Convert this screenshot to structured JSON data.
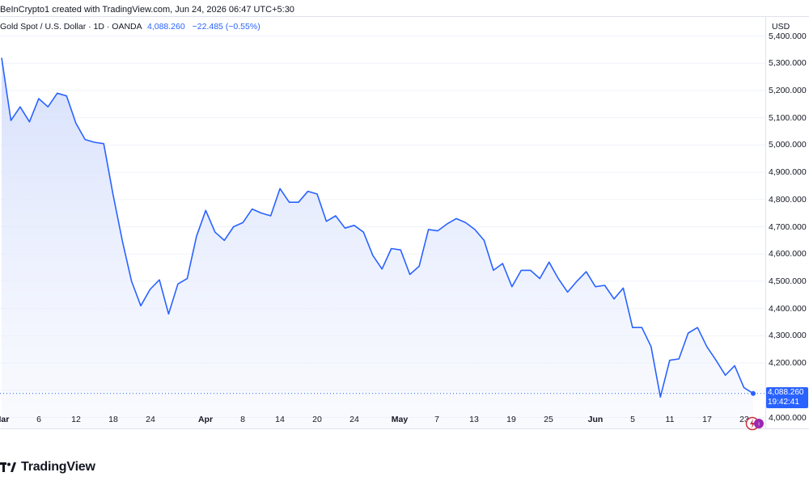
{
  "caption": "BeInCrypto1 created with TradingView.com, Jun 24, 2026 06:47 UTC+5:30",
  "legend": {
    "symbol": "Gold Spot / U.S. Dollar · 1D · OANDA",
    "last": "4,088.260",
    "change": "−22.485 (−0.55%)"
  },
  "currency_label": "USD",
  "price_tag": {
    "price": "4,088.260",
    "countdown": "19:42:41"
  },
  "brand": "TradingView",
  "colors": {
    "line": "#2962ff",
    "fill_top": "#d4defc",
    "text": "#131722",
    "grid": "#f0f3fa"
  },
  "icons": {
    "logo": "tradingview-logo-icon",
    "event": "economic-event-icon"
  },
  "chart_data": {
    "type": "area",
    "title": "Gold Spot / U.S. Dollar · 1D · OANDA",
    "xlabel": "",
    "ylabel": "",
    "ylim": [
      3950,
      5450
    ],
    "grid": true,
    "y_ticks": [
      "5,400.000",
      "5,300.000",
      "5,200.000",
      "5,100.000",
      "5,000.000",
      "4,900.000",
      "4,800.000",
      "4,700.000",
      "4,600.000",
      "4,500.000",
      "4,400.000",
      "4,300.000",
      "4,200.000",
      "4,100.000",
      "4,000.000"
    ],
    "x_ticks": [
      {
        "label": "Mar",
        "strong": true
      },
      {
        "label": "6",
        "strong": false
      },
      {
        "label": "12",
        "strong": false
      },
      {
        "label": "18",
        "strong": false
      },
      {
        "label": "24",
        "strong": false
      },
      {
        "label": "Apr",
        "strong": true
      },
      {
        "label": "8",
        "strong": false
      },
      {
        "label": "14",
        "strong": false
      },
      {
        "label": "20",
        "strong": false
      },
      {
        "label": "24",
        "strong": false
      },
      {
        "label": "May",
        "strong": true
      },
      {
        "label": "7",
        "strong": false
      },
      {
        "label": "13",
        "strong": false
      },
      {
        "label": "19",
        "strong": false
      },
      {
        "label": "25",
        "strong": false
      },
      {
        "label": "Jun",
        "strong": true
      },
      {
        "label": "5",
        "strong": false
      },
      {
        "label": "11",
        "strong": false
      },
      {
        "label": "17",
        "strong": false
      },
      {
        "label": "23",
        "strong": false
      }
    ],
    "series": [
      {
        "values": [
          5320,
          5090,
          5140,
          5085,
          5170,
          5140,
          5190,
          5180,
          5080,
          5020,
          5010,
          5005,
          4820,
          4650,
          4500,
          4410,
          4470,
          4505,
          4380,
          4490,
          4510,
          4665,
          4760,
          4680,
          4650,
          4700,
          4715,
          4765,
          4750,
          4740,
          4840,
          4790,
          4790,
          4830,
          4820,
          4720,
          4740,
          4695,
          4705,
          4680,
          4595,
          4545,
          4620,
          4615,
          4525,
          4555,
          4690,
          4685,
          4710,
          4730,
          4715,
          4690,
          4650,
          4540,
          4565,
          4480,
          4540,
          4540,
          4510,
          4570,
          4510,
          4460,
          4500,
          4535,
          4480,
          4485,
          4435,
          4475,
          4330,
          4330,
          4260,
          4075,
          4210,
          4215,
          4310,
          4330,
          4260,
          4210,
          4155,
          4190,
          4110,
          4088
        ]
      }
    ],
    "last_value": 4088.26
  }
}
